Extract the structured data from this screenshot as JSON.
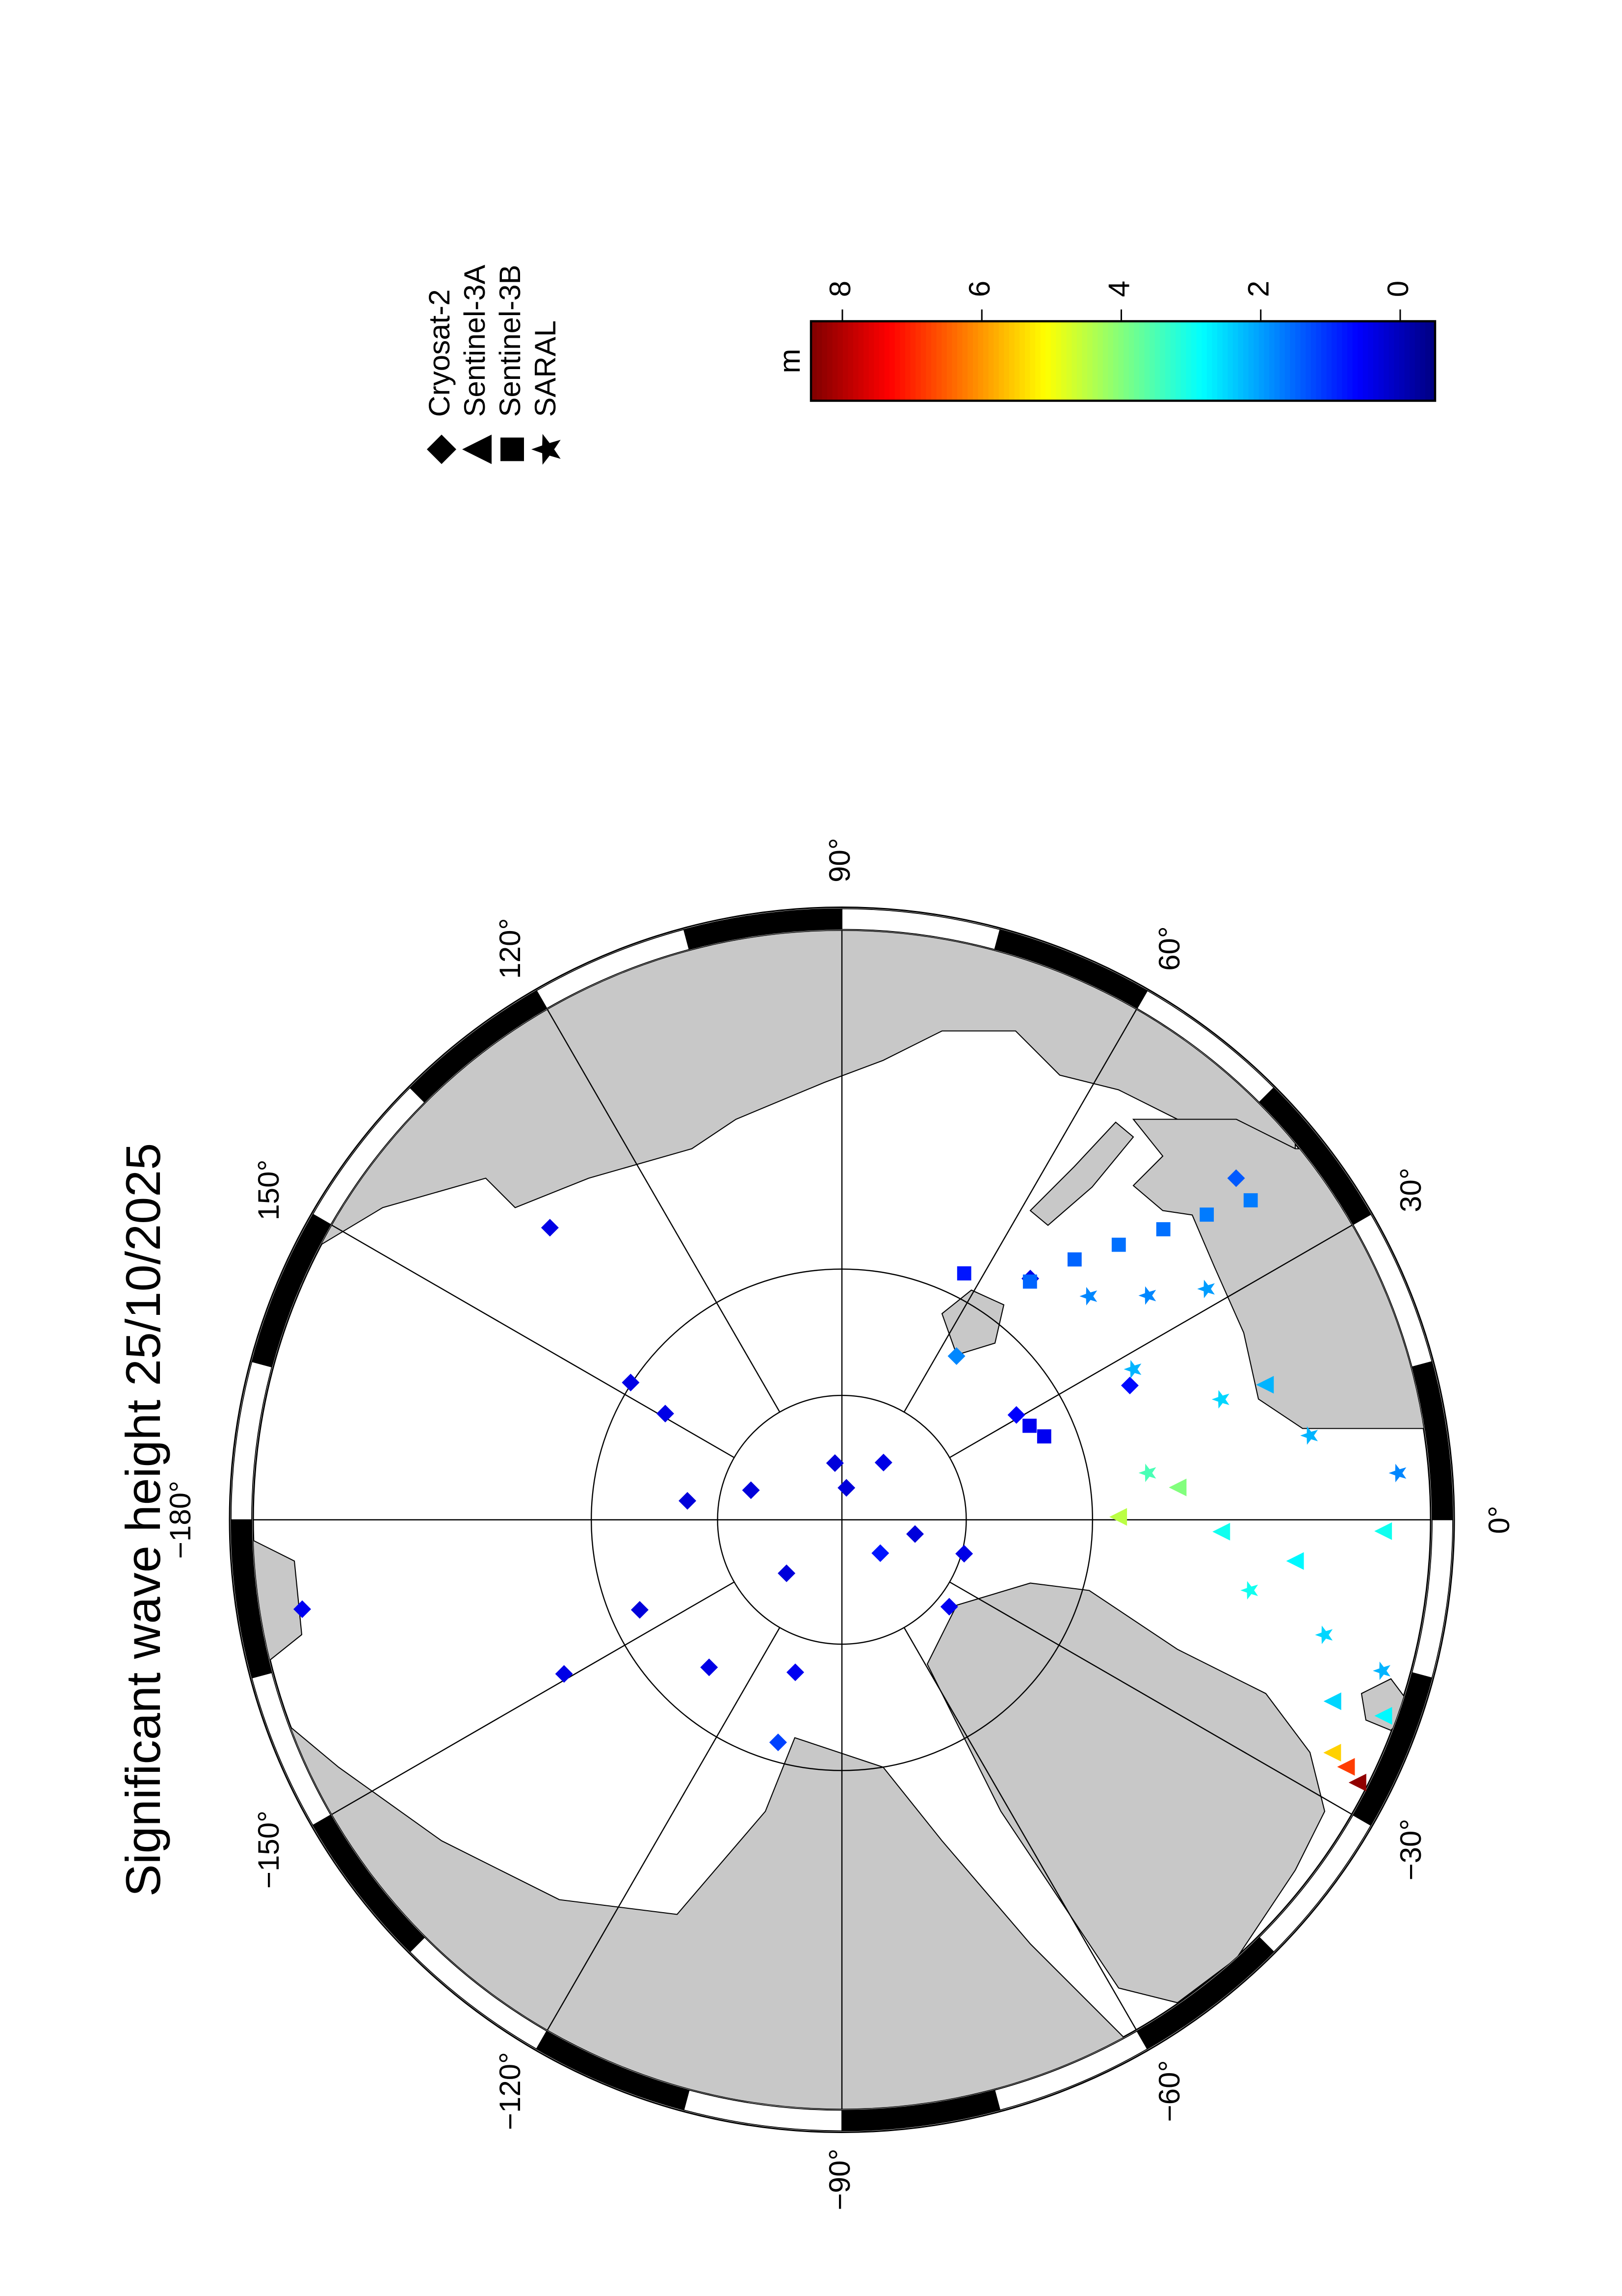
{
  "chart_data": {
    "type": "polar_map",
    "title": "Significant wave height 25/10/2025",
    "projection": "north_polar_stereographic",
    "lat_lim": [
      45,
      90
    ],
    "lat_grid": [
      70,
      80
    ],
    "lon_ticks": [
      {
        "value": 0,
        "label": "0°"
      },
      {
        "value": 30,
        "label": "30°"
      },
      {
        "value": 60,
        "label": "60°"
      },
      {
        "value": 90,
        "label": "90°"
      },
      {
        "value": 120,
        "label": "120°"
      },
      {
        "value": 150,
        "label": "150°"
      },
      {
        "value": -180,
        "label": "−180°"
      },
      {
        "value": -150,
        "label": "−150°"
      },
      {
        "value": -120,
        "label": "−120°"
      },
      {
        "value": -90,
        "label": "−90°"
      },
      {
        "value": -60,
        "label": "−60°"
      },
      {
        "value": -30,
        "label": "−30°"
      }
    ],
    "colormap": "jet",
    "colorbar": {
      "label": "m",
      "lim": [
        -0.5,
        8.45
      ],
      "ticks": [
        0,
        2,
        4,
        6,
        8
      ]
    },
    "series": [
      {
        "name": "Cryosat-2",
        "marker": "diamond",
        "lon": [
          82,
          97,
          54,
          162,
          -11,
          -41,
          -136,
          173,
          149,
          147,
          -156,
          -151,
          -132,
          -107,
          -106,
          -170.6,
          135,
          -15.5,
          -39,
          31,
          52,
          40.9,
          25,
          55
        ],
        "lat": [
          87.4,
          85.4,
          84.3,
          82.3,
          84.0,
          85.9,
          83.8,
          77.5,
          73.5,
          69.9,
          72.3,
          64.8,
          74.1,
          77.2,
          71.5,
          47.9,
          57.6,
          79.8,
          78.9,
          73.7,
          65.7,
          49.7,
          64.8,
          74.0
        ],
        "values": [
          0.3,
          0.3,
          0.4,
          0.3,
          0.3,
          0.8,
          0.3,
          0.3,
          0.4,
          0.4,
          0.3,
          0.4,
          0.4,
          0.5,
          1.2,
          0.5,
          0.4,
          0.4,
          0.5,
          0.6,
          0.4,
          1.4,
          0.7,
          1.8
        ]
      },
      {
        "name": "Sentinel-3A",
        "marker": "triangle",
        "lon": [
          -25.4,
          -26.1,
          -27.0,
          -20.3,
          -19.9,
          0.6,
          5.5,
          -1.8,
          -5.2,
          -1.2,
          17.7
        ],
        "lat": [
          48.2,
          46.9,
          45.7,
          49.6,
          45.9,
          68.0,
          63.3,
          60.1,
          54.5,
          48.3,
          55.3
        ],
        "values": [
          5.5,
          6.8,
          8.3,
          2.5,
          2.8,
          4.5,
          4.0,
          3.0,
          2.8,
          3.0,
          2.2
        ]
      },
      {
        "name": "Sentinel-3B",
        "marker": "square",
        "lon": [
          51.7,
          48.2,
          44.8,
          42.1,
          39.9,
          38.0,
          26.6,
          22.4,
          63.6
        ],
        "lat": [
          65.9,
          62.4,
          59.3,
          56.1,
          53.0,
          49.9,
          73.2,
          72.5,
          68.1
        ],
        "values": [
          1.5,
          1.5,
          1.6,
          1.6,
          1.7,
          1.7,
          0.5,
          0.5,
          0.8
        ]
      },
      {
        "name": "SARAL",
        "marker": "star",
        "lon": [
          42.1,
          36.2,
          32.3,
          27.3,
          17.6,
          10.2,
          4.8,
          -9.8,
          -13.4,
          -15.6,
          8.7
        ],
        "lat": [
          63.6,
          60.1,
          56.2,
          64.0,
          58.7,
          53.0,
          47.1,
          57.5,
          51.5,
          46.9,
          65.4
        ],
        "values": [
          1.8,
          1.8,
          2.0,
          2.2,
          2.5,
          2.2,
          1.8,
          3.0,
          2.5,
          2.2,
          3.5
        ]
      }
    ]
  }
}
